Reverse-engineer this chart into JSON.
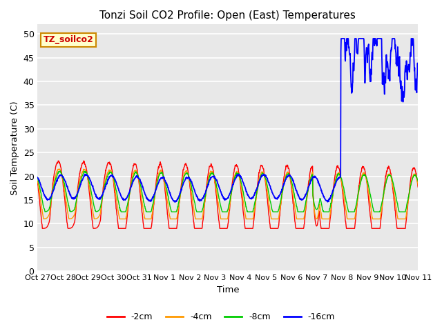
{
  "title": "Tonzi Soil CO2 Profile: Open (East) Temperatures",
  "xlabel": "Time",
  "ylabel": "Soil Temperature (C)",
  "legend_label": "TZ_soilco2",
  "ylim": [
    0,
    52
  ],
  "yticks": [
    0,
    5,
    10,
    15,
    20,
    25,
    30,
    35,
    40,
    45,
    50
  ],
  "xtick_labels": [
    "Oct 27",
    "Oct 28",
    "Oct 29",
    "Oct 30",
    "Oct 31",
    "Nov 1",
    "Nov 2",
    "Nov 3",
    "Nov 4",
    "Nov 5",
    "Nov 6",
    "Nov 7",
    "Nov 8",
    "Nov 9",
    "Nov 10",
    "Nov 11"
  ],
  "colors": {
    "-2cm": "#ff0000",
    "-4cm": "#ff9900",
    "-8cm": "#00cc00",
    "-16cm": "#0000ff"
  },
  "bg_color": "#e8e8e8",
  "legend_entries": [
    "-2cm",
    "-4cm",
    "-8cm",
    "-16cm"
  ],
  "legend_colors": [
    "#ff0000",
    "#ff9900",
    "#00cc00",
    "#0000ff"
  ]
}
